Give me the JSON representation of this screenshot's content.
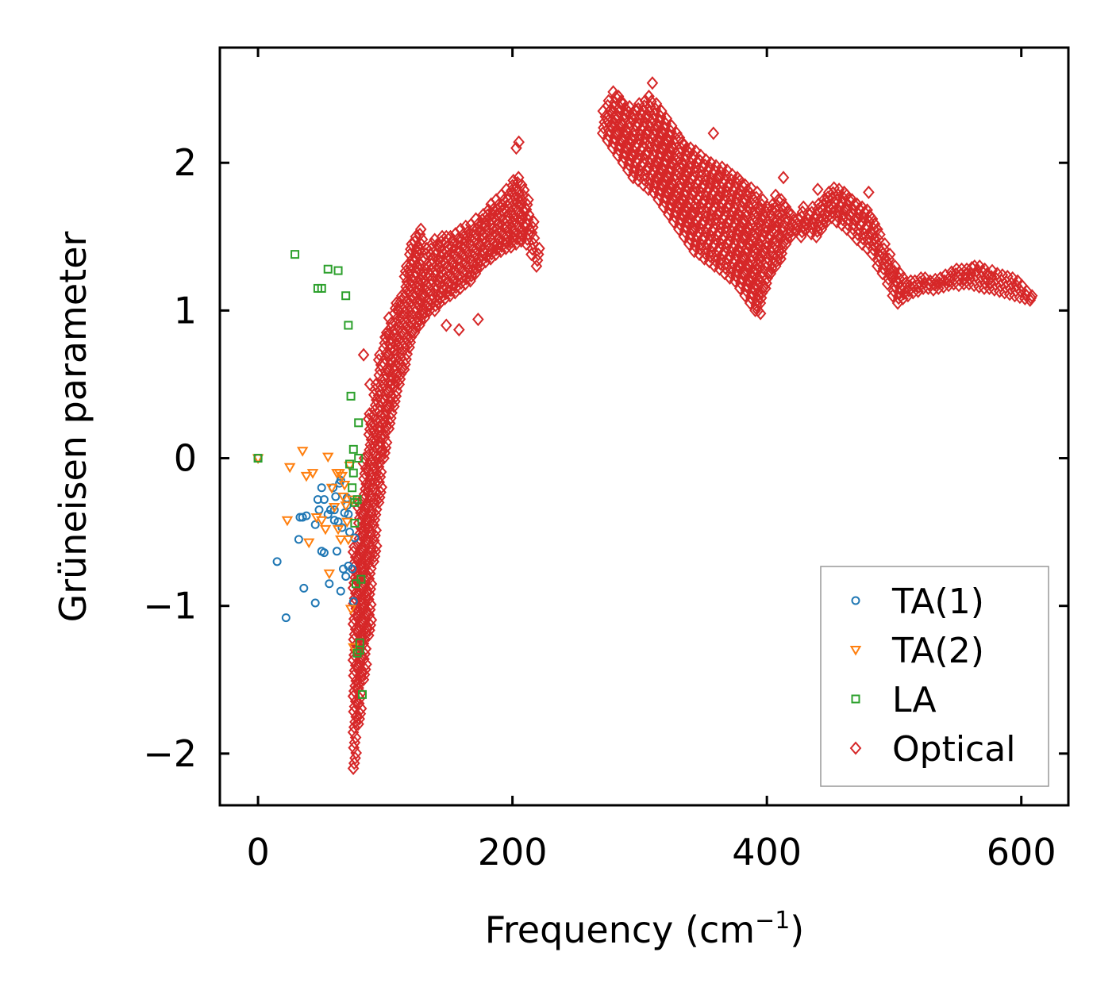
{
  "chart_data": {
    "type": "scatter",
    "title": "",
    "xlabel_main": "Frequency (cm",
    "xlabel_sup": "−1",
    "xlabel_close": ")",
    "ylabel": "Grüneisen parameter",
    "xlim": [
      -30,
      637
    ],
    "ylim": [
      -2.35,
      2.78
    ],
    "xticks": [
      0,
      200,
      400,
      600
    ],
    "xtick_labels": [
      "0",
      "200",
      "400",
      "600"
    ],
    "yticks": [
      -2,
      -1,
      0,
      1,
      2
    ],
    "ytick_labels": [
      "−2",
      "−1",
      "0",
      "1",
      "2"
    ],
    "grid": false,
    "legend_position": "lower-right",
    "series": [
      {
        "name": "TA(1)",
        "marker": "circle",
        "color": "#1f77b4",
        "points": [
          [
            0,
            0
          ],
          [
            15,
            -0.7
          ],
          [
            22,
            -1.08
          ],
          [
            32,
            -0.55
          ],
          [
            33,
            -0.4
          ],
          [
            35,
            -0.4
          ],
          [
            36,
            -0.88
          ],
          [
            38,
            -0.39
          ],
          [
            45,
            -0.45
          ],
          [
            45,
            -0.98
          ],
          [
            47,
            -0.28
          ],
          [
            48,
            -0.35
          ],
          [
            50,
            -0.63
          ],
          [
            50,
            -0.2
          ],
          [
            52,
            -0.64
          ],
          [
            52,
            -0.28
          ],
          [
            55,
            -0.38
          ],
          [
            56,
            -0.85
          ],
          [
            57,
            -0.35
          ],
          [
            59,
            -0.2
          ],
          [
            60,
            -0.35
          ],
          [
            60,
            -0.42
          ],
          [
            61,
            -0.26
          ],
          [
            62,
            -0.63
          ],
          [
            63,
            -0.43
          ],
          [
            64,
            -0.17
          ],
          [
            65,
            -0.15
          ],
          [
            65,
            -0.9
          ],
          [
            66,
            -0.47
          ],
          [
            67,
            -0.75
          ],
          [
            68,
            -0.37
          ],
          [
            69,
            -0.8
          ],
          [
            70,
            -0.27
          ],
          [
            70,
            -0.32
          ],
          [
            71,
            -0.73
          ],
          [
            71,
            -0.38
          ],
          [
            72,
            -0.5
          ],
          [
            74,
            -0.75
          ],
          [
            75,
            -0.97
          ],
          [
            76,
            -0.54
          ]
        ]
      },
      {
        "name": "TA(2)",
        "marker": "triangle-down",
        "color": "#ff7f0e",
        "points": [
          [
            0,
            0
          ],
          [
            23,
            -0.42
          ],
          [
            25,
            -0.06
          ],
          [
            35,
            0.05
          ],
          [
            38,
            -0.12
          ],
          [
            40,
            -0.57
          ],
          [
            43,
            -0.1
          ],
          [
            46,
            -0.4
          ],
          [
            50,
            -0.42
          ],
          [
            53,
            -0.48
          ],
          [
            55,
            0.01
          ],
          [
            56,
            -0.78
          ],
          [
            58,
            -0.2
          ],
          [
            60,
            -0.33
          ],
          [
            62,
            -0.1
          ],
          [
            63,
            -0.48
          ],
          [
            64,
            -0.1
          ],
          [
            65,
            -0.55
          ],
          [
            66,
            -0.12
          ],
          [
            67,
            -0.26
          ],
          [
            68,
            -0.18
          ],
          [
            69,
            -0.32
          ],
          [
            70,
            -0.43
          ],
          [
            71,
            -0.55
          ],
          [
            72,
            -0.05
          ],
          [
            73,
            -1.02
          ],
          [
            74,
            -0.28
          ],
          [
            75,
            -1.28
          ]
        ]
      },
      {
        "name": "LA",
        "marker": "square",
        "color": "#2ca02c",
        "points": [
          [
            0,
            0
          ],
          [
            29,
            1.38
          ],
          [
            47,
            1.15
          ],
          [
            50,
            1.15
          ],
          [
            55,
            1.28
          ],
          [
            63,
            1.27
          ],
          [
            69,
            1.1
          ],
          [
            71,
            0.9
          ],
          [
            72,
            -0.04
          ],
          [
            73,
            0.42
          ],
          [
            74,
            -0.2
          ],
          [
            75,
            0.06
          ],
          [
            75,
            -0.1
          ],
          [
            76,
            -0.3
          ],
          [
            76,
            -0.44
          ],
          [
            77,
            -0.85
          ],
          [
            78,
            -0.28
          ],
          [
            78,
            -1.32
          ],
          [
            79,
            0.24
          ],
          [
            79,
            0
          ],
          [
            80,
            -1.25
          ],
          [
            80,
            -1.3
          ],
          [
            81,
            -0.82
          ],
          [
            82,
            -1.6
          ]
        ]
      }
    ],
    "optical_series": {
      "name": "Optical",
      "marker": "diamond",
      "color": "#d62728",
      "outliers": [
        [
          83,
          0.7
        ],
        [
          88,
          0.5
        ],
        [
          100,
          0.82
        ],
        [
          110,
          1.0
        ],
        [
          148,
          0.9
        ],
        [
          158,
          0.87
        ],
        [
          173,
          0.94
        ],
        [
          203,
          2.1
        ],
        [
          205,
          2.14
        ],
        [
          310,
          2.54
        ],
        [
          358,
          2.2
        ],
        [
          393,
          1.0
        ],
        [
          395,
          0.98
        ],
        [
          413,
          1.9
        ],
        [
          440,
          1.82
        ],
        [
          480,
          1.8
        ]
      ],
      "band_segments": [
        [
          76,
          -2.1,
          -0.6
        ],
        [
          80,
          -1.8,
          -0.3
        ],
        [
          84,
          -1.5,
          0.0
        ],
        [
          88,
          -1.2,
          0.3
        ],
        [
          92,
          -0.7,
          0.5
        ],
        [
          96,
          -0.3,
          0.7
        ],
        [
          100,
          0.0,
          0.85
        ],
        [
          104,
          0.2,
          0.95
        ],
        [
          108,
          0.35,
          1.05
        ],
        [
          112,
          0.5,
          1.1
        ],
        [
          116,
          0.6,
          1.3
        ],
        [
          120,
          0.75,
          1.45
        ],
        [
          124,
          0.85,
          1.5
        ],
        [
          128,
          0.9,
          1.55
        ],
        [
          132,
          0.95,
          1.42
        ],
        [
          136,
          1.0,
          1.45
        ],
        [
          140,
          1.0,
          1.48
        ],
        [
          144,
          1.05,
          1.5
        ],
        [
          148,
          1.08,
          1.5
        ],
        [
          152,
          1.1,
          1.5
        ],
        [
          156,
          1.12,
          1.52
        ],
        [
          160,
          1.15,
          1.55
        ],
        [
          164,
          1.18,
          1.57
        ],
        [
          168,
          1.2,
          1.58
        ],
        [
          172,
          1.25,
          1.62
        ],
        [
          176,
          1.3,
          1.65
        ],
        [
          180,
          1.33,
          1.68
        ],
        [
          184,
          1.35,
          1.72
        ],
        [
          188,
          1.38,
          1.75
        ],
        [
          192,
          1.4,
          1.78
        ],
        [
          196,
          1.42,
          1.82
        ],
        [
          200,
          1.43,
          1.88
        ],
        [
          204,
          1.45,
          1.9
        ],
        [
          208,
          1.47,
          1.85
        ],
        [
          212,
          1.45,
          1.75
        ],
        [
          216,
          1.38,
          1.6
        ],
        [
          220,
          1.3,
          1.42
        ],
        [
          272,
          2.2,
          2.35
        ],
        [
          276,
          2.15,
          2.42
        ],
        [
          280,
          2.1,
          2.48
        ],
        [
          284,
          2.05,
          2.45
        ],
        [
          288,
          2.0,
          2.4
        ],
        [
          292,
          1.95,
          2.38
        ],
        [
          296,
          1.9,
          2.36
        ],
        [
          300,
          1.88,
          2.4
        ],
        [
          304,
          1.85,
          2.42
        ],
        [
          308,
          1.82,
          2.45
        ],
        [
          312,
          1.8,
          2.4
        ],
        [
          316,
          1.75,
          2.35
        ],
        [
          320,
          1.7,
          2.3
        ],
        [
          324,
          1.65,
          2.25
        ],
        [
          328,
          1.6,
          2.2
        ],
        [
          332,
          1.55,
          2.17
        ],
        [
          336,
          1.5,
          2.12
        ],
        [
          340,
          1.45,
          2.1
        ],
        [
          344,
          1.4,
          2.08
        ],
        [
          348,
          1.38,
          2.05
        ],
        [
          352,
          1.35,
          2.02
        ],
        [
          356,
          1.33,
          2.0
        ],
        [
          360,
          1.3,
          1.98
        ],
        [
          364,
          1.28,
          1.97
        ],
        [
          368,
          1.25,
          1.95
        ],
        [
          372,
          1.22,
          1.92
        ],
        [
          376,
          1.2,
          1.9
        ],
        [
          380,
          1.15,
          1.88
        ],
        [
          384,
          1.1,
          1.85
        ],
        [
          388,
          1.05,
          1.83
        ],
        [
          392,
          1.0,
          1.8
        ],
        [
          396,
          1.05,
          1.75
        ],
        [
          400,
          1.15,
          1.7
        ],
        [
          404,
          1.25,
          1.72
        ],
        [
          408,
          1.3,
          1.78
        ],
        [
          412,
          1.35,
          1.75
        ],
        [
          416,
          1.45,
          1.7
        ],
        [
          420,
          1.5,
          1.65
        ],
        [
          424,
          1.55,
          1.62
        ],
        [
          428,
          1.5,
          1.7
        ],
        [
          432,
          1.55,
          1.65
        ],
        [
          436,
          1.52,
          1.7
        ],
        [
          440,
          1.5,
          1.72
        ],
        [
          444,
          1.55,
          1.75
        ],
        [
          448,
          1.6,
          1.8
        ],
        [
          452,
          1.63,
          1.83
        ],
        [
          456,
          1.6,
          1.82
        ],
        [
          460,
          1.58,
          1.8
        ],
        [
          464,
          1.55,
          1.78
        ],
        [
          468,
          1.52,
          1.75
        ],
        [
          472,
          1.48,
          1.72
        ],
        [
          476,
          1.45,
          1.7
        ],
        [
          480,
          1.42,
          1.68
        ],
        [
          484,
          1.38,
          1.62
        ],
        [
          488,
          1.3,
          1.55
        ],
        [
          492,
          1.25,
          1.45
        ],
        [
          496,
          1.18,
          1.38
        ],
        [
          500,
          1.1,
          1.3
        ],
        [
          504,
          1.05,
          1.25
        ],
        [
          508,
          1.08,
          1.22
        ],
        [
          512,
          1.1,
          1.2
        ],
        [
          516,
          1.12,
          1.2
        ],
        [
          520,
          1.13,
          1.22
        ],
        [
          524,
          1.15,
          1.22
        ],
        [
          528,
          1.15,
          1.2
        ],
        [
          532,
          1.14,
          1.21
        ],
        [
          536,
          1.15,
          1.22
        ],
        [
          540,
          1.16,
          1.24
        ],
        [
          544,
          1.17,
          1.26
        ],
        [
          548,
          1.18,
          1.28
        ],
        [
          552,
          1.17,
          1.28
        ],
        [
          556,
          1.18,
          1.28
        ],
        [
          560,
          1.18,
          1.29
        ],
        [
          564,
          1.17,
          1.3
        ],
        [
          568,
          1.16,
          1.3
        ],
        [
          572,
          1.15,
          1.28
        ],
        [
          576,
          1.15,
          1.27
        ],
        [
          580,
          1.14,
          1.25
        ],
        [
          584,
          1.13,
          1.24
        ],
        [
          588,
          1.12,
          1.23
        ],
        [
          592,
          1.11,
          1.22
        ],
        [
          596,
          1.1,
          1.2
        ],
        [
          600,
          1.09,
          1.17
        ],
        [
          604,
          1.08,
          1.13
        ],
        [
          608,
          1.07,
          1.1
        ]
      ]
    },
    "legend_items": [
      "TA(1)",
      "TA(2)",
      "LA",
      "Optical"
    ]
  }
}
